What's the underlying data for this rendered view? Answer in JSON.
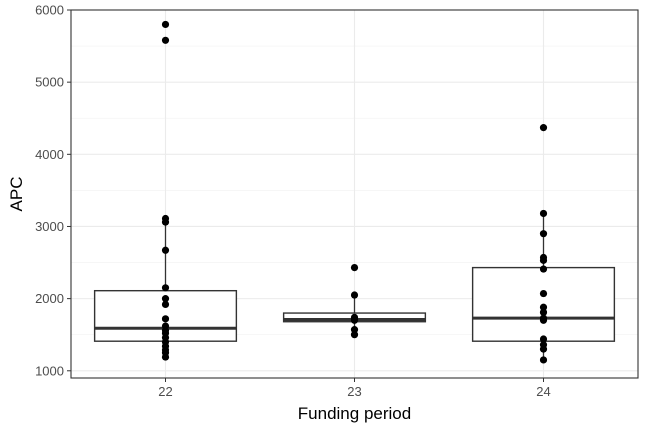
{
  "chart_data": {
    "type": "boxplot",
    "xlabel": "Funding period",
    "ylabel": "APC",
    "categories": [
      "22",
      "23",
      "24"
    ],
    "ylim": [
      900,
      6000
    ],
    "yticks": [
      1000,
      2000,
      3000,
      4000,
      5000,
      6000
    ],
    "grid": true,
    "boxes": [
      {
        "category": "22",
        "whisker_low": 1190,
        "q1": 1410,
        "median": 1590,
        "q3": 2110,
        "whisker_high": 3110
      },
      {
        "category": "23",
        "whisker_low": 1500,
        "q1": 1680,
        "median": 1710,
        "q3": 1800,
        "whisker_high": 2050
      },
      {
        "category": "24",
        "whisker_low": 1150,
        "q1": 1410,
        "median": 1730,
        "q3": 2430,
        "whisker_high": 3180
      }
    ],
    "points": [
      {
        "category": "22",
        "values": [
          5800,
          5580,
          3110,
          3060,
          2670,
          2150,
          2000,
          1920,
          1720,
          1620,
          1560,
          1520,
          1460,
          1400,
          1340,
          1290,
          1250,
          1190
        ]
      },
      {
        "category": "23",
        "values": [
          2430,
          2050,
          1740,
          1710,
          1700,
          1570,
          1500
        ]
      },
      {
        "category": "24",
        "values": [
          4370,
          3180,
          2900,
          2570,
          2530,
          2410,
          2070,
          1880,
          1810,
          1730,
          1700,
          1440,
          1360,
          1300,
          1150
        ]
      }
    ]
  }
}
